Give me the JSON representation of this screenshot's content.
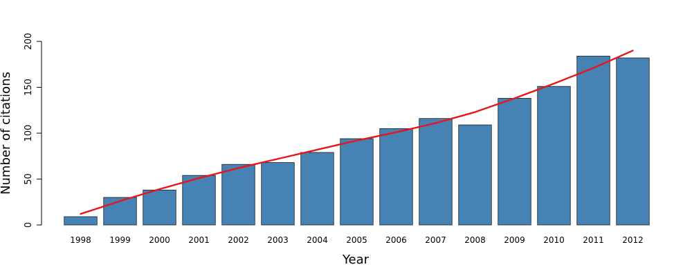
{
  "chart_data": {
    "type": "bar",
    "title": "",
    "xlabel": "Year",
    "ylabel": "Number of citations",
    "categories": [
      "1998",
      "1999",
      "2000",
      "2001",
      "2002",
      "2003",
      "2004",
      "2005",
      "2006",
      "2007",
      "2008",
      "2009",
      "2010",
      "2011",
      "2012"
    ],
    "series": [
      {
        "values": [
          9,
          30,
          38,
          54,
          66,
          68,
          79,
          94,
          105,
          116,
          109,
          138,
          151,
          184,
          182
        ]
      }
    ],
    "trend": {
      "type": "line",
      "values": [
        12,
        26,
        39,
        51,
        62,
        72,
        82,
        92,
        101,
        111,
        123,
        138,
        154,
        171,
        190
      ]
    },
    "ylim": [
      0,
      200
    ],
    "yticks": [
      0,
      50,
      100,
      150,
      200
    ],
    "grid": false,
    "legend": "none",
    "colors": {
      "bar_fill": "#4682b4",
      "bar_stroke": "#1a1a1a",
      "trend_line": "#e8141b",
      "axis": "#000000"
    }
  }
}
